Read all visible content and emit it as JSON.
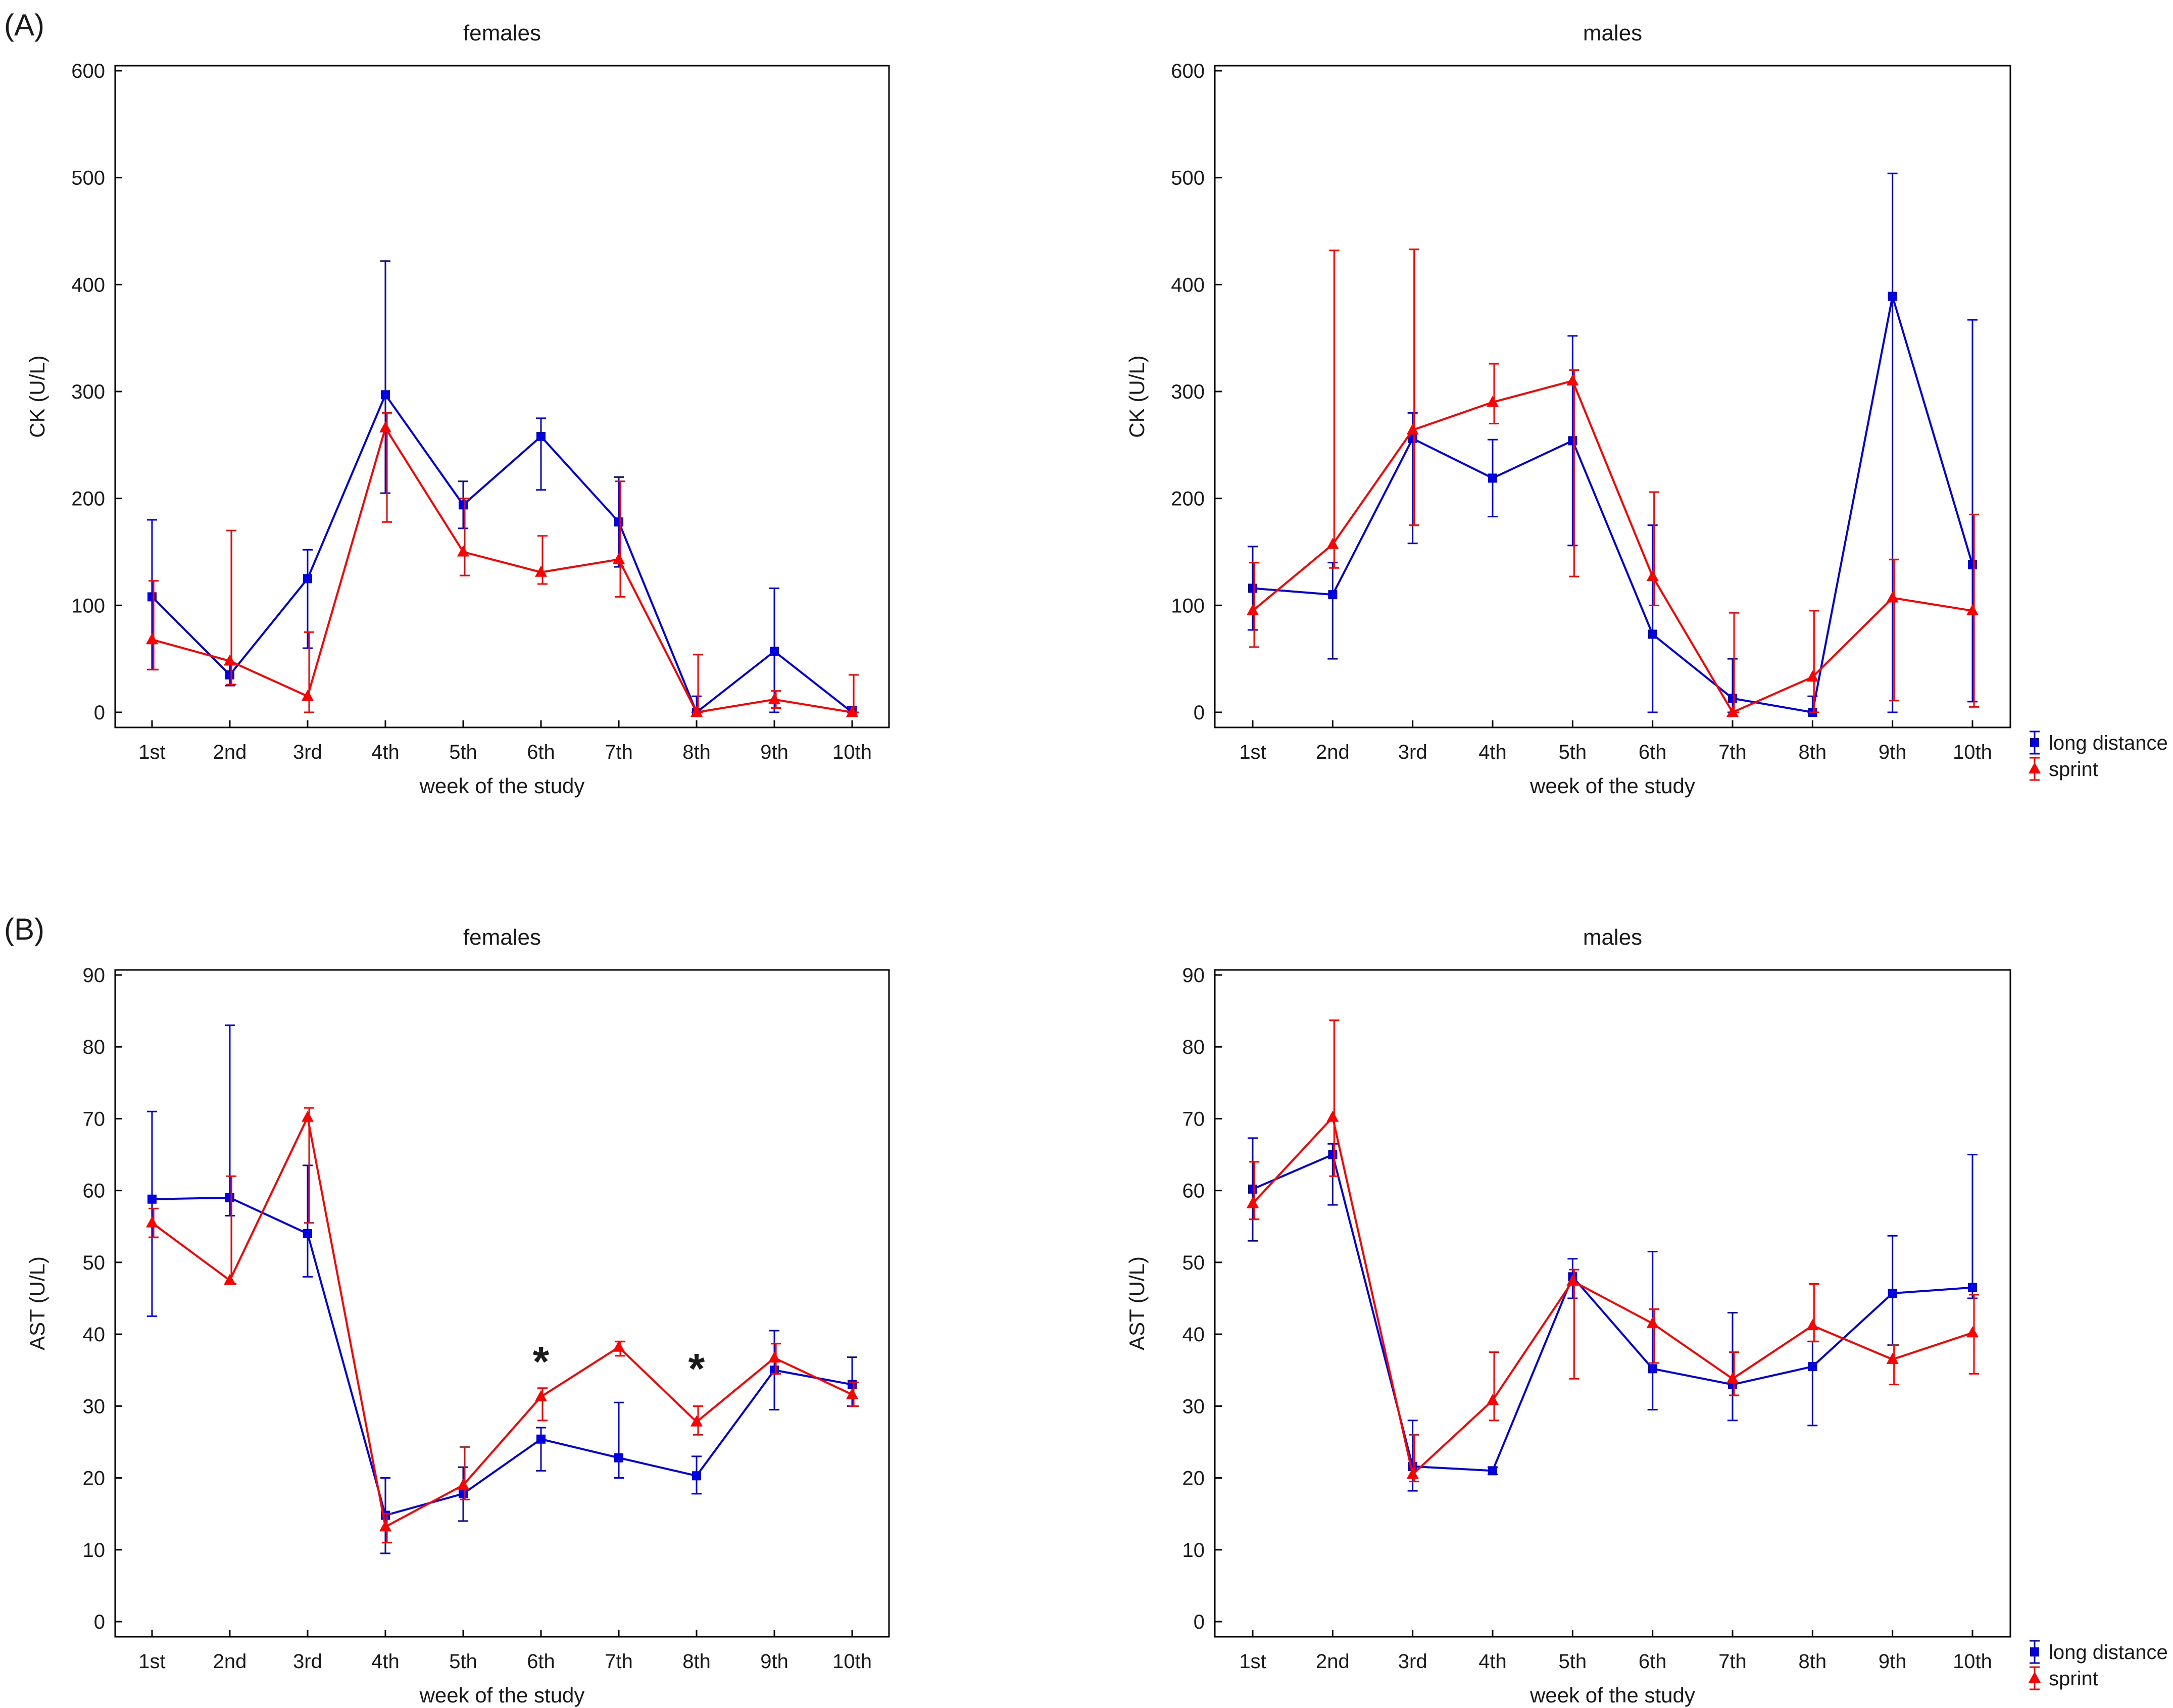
{
  "figure": {
    "panels": [
      {
        "label": "(A)"
      },
      {
        "label": "(B)"
      }
    ],
    "legend": [
      {
        "name": "long distance",
        "color": "#0000e0"
      },
      {
        "name": "sprint",
        "color": "#ff0000"
      }
    ]
  },
  "chart_data": [
    {
      "type": "line",
      "title": "females",
      "xlabel": "week of the study",
      "ylabel": "CK (U/L)",
      "categories": [
        "1st",
        "2nd",
        "3rd",
        "4th",
        "5th",
        "6th",
        "7th",
        "8th",
        "9th",
        "10th"
      ],
      "ylim": [
        0,
        600
      ],
      "yticks": [
        0,
        100,
        200,
        300,
        400,
        500,
        600
      ],
      "series": [
        {
          "name": "long distance",
          "color": "#0000e0",
          "marker": "square",
          "values": [
            108,
            35,
            125,
            297,
            194,
            258,
            178,
            0,
            57,
            0
          ],
          "upper": [
            180,
            45,
            152,
            422,
            216,
            275,
            220,
            15,
            116,
            5
          ],
          "lower": [
            40,
            25,
            60,
            205,
            172,
            208,
            136,
            0,
            0,
            0
          ]
        },
        {
          "name": "sprint",
          "color": "#ff0000",
          "marker": "triangle",
          "values": [
            68,
            48,
            15,
            266,
            150,
            131,
            143,
            0,
            12,
            0
          ],
          "upper": [
            123,
            170,
            75,
            280,
            200,
            165,
            216,
            54,
            20,
            35
          ],
          "lower": [
            40,
            26,
            0,
            178,
            128,
            120,
            108,
            0,
            4,
            0
          ]
        }
      ],
      "annotations": []
    },
    {
      "type": "line",
      "title": "males",
      "xlabel": "week of the study",
      "ylabel": "CK (U/L)",
      "categories": [
        "1st",
        "2nd",
        "3rd",
        "4th",
        "5th",
        "6th",
        "7th",
        "8th",
        "9th",
        "10th"
      ],
      "ylim": [
        0,
        600
      ],
      "yticks": [
        0,
        100,
        200,
        300,
        400,
        500,
        600
      ],
      "series": [
        {
          "name": "long distance",
          "color": "#0000e0",
          "marker": "square",
          "values": [
            116,
            110,
            256,
            219,
            254,
            73,
            13,
            0,
            389,
            138
          ],
          "upper": [
            155,
            140,
            280,
            255,
            352,
            175,
            50,
            15,
            504,
            367
          ],
          "lower": [
            77,
            50,
            158,
            183,
            156,
            0,
            0,
            0,
            0,
            10
          ]
        },
        {
          "name": "sprint",
          "color": "#ff0000",
          "marker": "triangle",
          "values": [
            95,
            157,
            264,
            290,
            310,
            127,
            0,
            33,
            107,
            95
          ],
          "upper": [
            140,
            432,
            433,
            326,
            320,
            206,
            93,
            95,
            143,
            185
          ],
          "lower": [
            61,
            135,
            175,
            270,
            127,
            100,
            0,
            0,
            11,
            5
          ]
        }
      ],
      "annotations": []
    },
    {
      "type": "line",
      "title": "females",
      "xlabel": "week of the study",
      "ylabel": "AST (U/L)",
      "categories": [
        "1st",
        "2nd",
        "3rd",
        "4th",
        "5th",
        "6th",
        "7th",
        "8th",
        "9th",
        "10th"
      ],
      "ylim": [
        0,
        90
      ],
      "yticks": [
        0,
        10,
        20,
        30,
        40,
        50,
        60,
        70,
        80,
        90
      ],
      "series": [
        {
          "name": "long distance",
          "color": "#0000e0",
          "marker": "square",
          "values": [
            58.8,
            59,
            54,
            14.8,
            17.8,
            25.4,
            22.8,
            20.3,
            35,
            33
          ],
          "upper": [
            71,
            83,
            63.5,
            20,
            21.5,
            27,
            30.5,
            23,
            40.5,
            36.8
          ],
          "lower": [
            42.5,
            56.5,
            48,
            9.5,
            14,
            21,
            20,
            17.8,
            29.5,
            30
          ]
        },
        {
          "name": "sprint",
          "color": "#ff0000",
          "marker": "triangle",
          "values": [
            55.5,
            47.5,
            70.2,
            13.2,
            19,
            31.3,
            38.2,
            27.8,
            36.7,
            31.6
          ],
          "upper": [
            57.5,
            62,
            71.5,
            15,
            24.3,
            32.5,
            39,
            30,
            38.7,
            33.3
          ],
          "lower": [
            53.5,
            47,
            55.5,
            11,
            17,
            28,
            37,
            26,
            34.5,
            30
          ]
        }
      ],
      "annotations": [
        {
          "text": "*",
          "category": "6th",
          "y": 37
        },
        {
          "text": "*",
          "category": "8th",
          "y": 36
        }
      ]
    },
    {
      "type": "line",
      "title": "males",
      "xlabel": "week of the study",
      "ylabel": "AST (U/L)",
      "categories": [
        "1st",
        "2nd",
        "3rd",
        "4th",
        "5th",
        "6th",
        "7th",
        "8th",
        "9th",
        "10th"
      ],
      "ylim": [
        0,
        90
      ],
      "yticks": [
        0,
        10,
        20,
        30,
        40,
        50,
        60,
        70,
        80,
        90
      ],
      "series": [
        {
          "name": "long distance",
          "color": "#0000e0",
          "marker": "square",
          "values": [
            60.2,
            65,
            21.6,
            21,
            48,
            35.2,
            33,
            35.5,
            45.7,
            46.5
          ],
          "upper": [
            67.3,
            66.5,
            28,
            21.5,
            50.5,
            51.5,
            43,
            39,
            53.7,
            65
          ],
          "lower": [
            53,
            58,
            18.2,
            20.5,
            45,
            29.5,
            28,
            27.3,
            38.5,
            45
          ]
        },
        {
          "name": "sprint",
          "color": "#ff0000",
          "marker": "triangle",
          "values": [
            58.2,
            70.2,
            20.5,
            30.8,
            47.4,
            41.5,
            33.8,
            41.2,
            36.5,
            40.2
          ],
          "upper": [
            64,
            83.7,
            26,
            37.5,
            49,
            43.5,
            37.5,
            47,
            38.5,
            45.5
          ],
          "lower": [
            56,
            62,
            19.5,
            28,
            33.8,
            36,
            31.5,
            39,
            33,
            34.5
          ]
        }
      ],
      "annotations": []
    }
  ]
}
